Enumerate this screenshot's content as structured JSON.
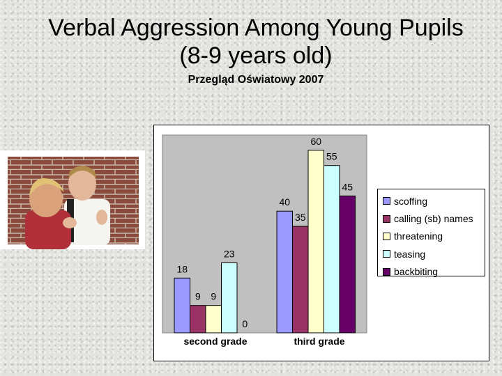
{
  "slide": {
    "title_line1": "Verbal Aggression Among Young Pupils",
    "title_line2": "(8-9 years old)",
    "subtitle": "Przegląd Oświatowy 2007"
  },
  "photo": {
    "description": "two boys by a brick wall"
  },
  "chart_data": {
    "type": "bar",
    "categories": [
      "second grade",
      "third grade"
    ],
    "series": [
      {
        "name": "scoffing",
        "color": "#9999ff",
        "values": [
          18,
          40
        ]
      },
      {
        "name": "calling (sb) names",
        "color": "#993366",
        "values": [
          9,
          35
        ]
      },
      {
        "name": "threatening",
        "color": "#ffffcc",
        "values": [
          9,
          60
        ]
      },
      {
        "name": "teasing",
        "color": "#ccffff",
        "values": [
          23,
          55
        ]
      },
      {
        "name": "backbiting",
        "color": "#660066",
        "values": [
          0,
          45
        ]
      }
    ],
    "ylim": [
      0,
      65
    ],
    "grid": false,
    "plot_background": "#c0c0c0",
    "legend_position": "right"
  }
}
